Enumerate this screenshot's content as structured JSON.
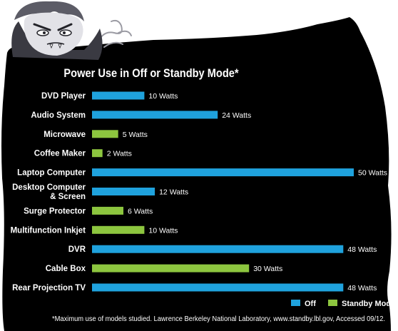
{
  "chart_data": {
    "type": "bar",
    "orientation": "horizontal",
    "title": "Power Use in Off or Standby Mode*",
    "unit": "Watts",
    "categories": [
      "DVD Player",
      "Audio System",
      "Microwave",
      "Coffee Maker",
      "Laptop Computer",
      "Desktop Computer & Screen",
      "Surge Protector",
      "Multifunction Inkjet",
      "DVR",
      "Cable Box",
      "Rear Projection TV"
    ],
    "category_lines": [
      [
        "DVD Player"
      ],
      [
        "Audio System"
      ],
      [
        "Microwave"
      ],
      [
        "Coffee Maker"
      ],
      [
        "Laptop Computer"
      ],
      [
        "Desktop Computer",
        "& Screen"
      ],
      [
        "Surge Protector"
      ],
      [
        "Multifunction Inkjet"
      ],
      [
        "DVR"
      ],
      [
        "Cable Box"
      ],
      [
        "Rear Projection TV"
      ]
    ],
    "values": [
      10,
      24,
      5,
      2,
      50,
      12,
      6,
      10,
      48,
      30,
      48
    ],
    "modes": [
      "Off",
      "Off",
      "Standby Mode",
      "Standby Mode",
      "Off",
      "Off",
      "Standby Mode",
      "Standby Mode",
      "Off",
      "Standby Mode",
      "Off"
    ],
    "value_labels": [
      "10 Watts",
      "24 Watts",
      "5 Watts",
      "2 Watts",
      "50 Watts",
      "12 Watts",
      "6 Watts",
      "10 Watts",
      "48 Watts",
      "30 Watts",
      "48 Watts"
    ],
    "xlim": [
      0,
      50
    ],
    "grid": false,
    "legend_position": "bottom-right",
    "legend": [
      {
        "name": "Off",
        "color": "#1fa2dd"
      },
      {
        "name": "Standby Mode",
        "color": "#8dc63f"
      }
    ]
  },
  "footnote": "*Maximum use of models studied. Lawrence Berkeley National Laboratory, www.standby.lbl.gov, Accessed 09/12.",
  "colors": {
    "background": "#000000",
    "text": "#ffffff",
    "off": "#1fa2dd",
    "standby": "#8dc63f"
  },
  "illustration": {
    "character": "vampire-mascot",
    "decoration": "smoke-wisp-icon"
  }
}
